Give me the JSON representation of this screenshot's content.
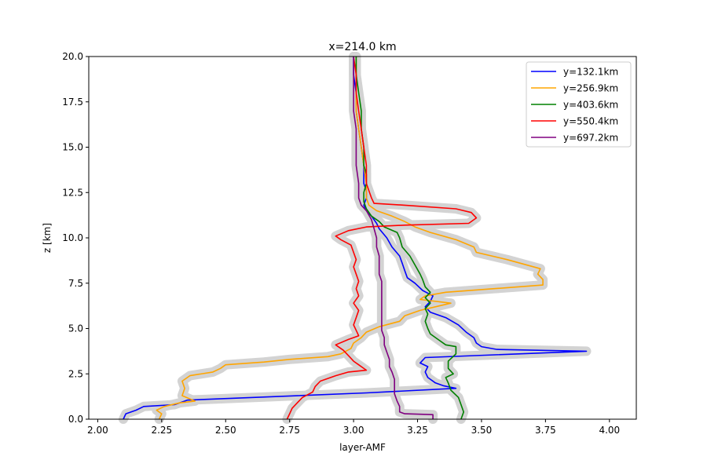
{
  "chart_data": {
    "type": "line",
    "title": "x=214.0 km",
    "xlabel": "layer-AMF",
    "ylabel": "z [km]",
    "xlim": [
      1.965,
      4.105
    ],
    "ylim": [
      0,
      20
    ],
    "xticks": [
      "2.00",
      "2.25",
      "2.50",
      "2.75",
      "3.00",
      "3.25",
      "3.50",
      "3.75",
      "4.00"
    ],
    "xtick_values": [
      2.0,
      2.25,
      2.5,
      2.75,
      3.0,
      3.25,
      3.5,
      3.75,
      4.0
    ],
    "yticks": [
      "0.0",
      "2.5",
      "5.0",
      "7.5",
      "10.0",
      "12.5",
      "15.0",
      "17.5",
      "20.0"
    ],
    "ytick_values": [
      0,
      2.5,
      5.0,
      7.5,
      10.0,
      12.5,
      15.0,
      17.5,
      20.0
    ],
    "grid": false,
    "legend_position": "top-right",
    "uncertainty_band_color": "#d3d3d3",
    "series": [
      {
        "name": "y=132.1km",
        "color": "#0000ff",
        "points": [
          [
            2.1,
            0.0
          ],
          [
            2.11,
            0.3
          ],
          [
            2.15,
            0.5
          ],
          [
            2.18,
            0.7
          ],
          [
            2.3,
            0.8
          ],
          [
            2.32,
            0.9
          ],
          [
            2.35,
            1.05
          ],
          [
            3.05,
            1.45
          ],
          [
            3.4,
            1.7
          ],
          [
            3.35,
            1.85
          ],
          [
            3.32,
            2.0
          ],
          [
            3.29,
            2.3
          ],
          [
            3.28,
            2.6
          ],
          [
            3.29,
            2.9
          ],
          [
            3.26,
            3.1
          ],
          [
            3.28,
            3.4
          ],
          [
            3.91,
            3.75
          ],
          [
            3.56,
            3.85
          ],
          [
            3.5,
            4.0
          ],
          [
            3.48,
            4.2
          ],
          [
            3.47,
            4.5
          ],
          [
            3.44,
            4.8
          ],
          [
            3.41,
            5.2
          ],
          [
            3.36,
            5.6
          ],
          [
            3.3,
            5.9
          ],
          [
            3.28,
            6.2
          ],
          [
            3.3,
            6.5
          ],
          [
            3.31,
            6.8
          ],
          [
            3.27,
            7.1
          ],
          [
            3.24,
            7.5
          ],
          [
            3.21,
            7.8
          ],
          [
            3.2,
            8.2
          ],
          [
            3.19,
            8.6
          ],
          [
            3.18,
            9.0
          ],
          [
            3.15,
            9.5
          ],
          [
            3.13,
            10.0
          ],
          [
            3.1,
            10.5
          ],
          [
            3.09,
            10.8
          ],
          [
            3.07,
            11.2
          ],
          [
            3.05,
            11.5
          ],
          [
            3.04,
            11.8
          ],
          [
            3.05,
            12.2
          ],
          [
            3.05,
            12.6
          ],
          [
            3.04,
            13.0
          ],
          [
            3.04,
            14.0
          ],
          [
            3.03,
            15.0
          ],
          [
            3.02,
            16.0
          ],
          [
            3.01,
            17.0
          ],
          [
            3.01,
            18.0
          ],
          [
            3.0,
            19.0
          ],
          [
            3.0,
            20.0
          ]
        ]
      },
      {
        "name": "y=256.9km",
        "color": "#ffa500",
        "points": [
          [
            2.24,
            0.0
          ],
          [
            2.25,
            0.3
          ],
          [
            2.23,
            0.5
          ],
          [
            2.26,
            0.7
          ],
          [
            2.32,
            0.9
          ],
          [
            2.38,
            1.0
          ],
          [
            2.33,
            1.3
          ],
          [
            2.34,
            1.7
          ],
          [
            2.33,
            2.1
          ],
          [
            2.36,
            2.4
          ],
          [
            2.45,
            2.6
          ],
          [
            2.48,
            2.8
          ],
          [
            2.5,
            3.0
          ],
          [
            2.65,
            3.15
          ],
          [
            2.75,
            3.3
          ],
          [
            2.9,
            3.45
          ],
          [
            2.95,
            3.6
          ],
          [
            2.99,
            3.9
          ],
          [
            3.0,
            4.2
          ],
          [
            3.03,
            4.5
          ],
          [
            3.05,
            4.8
          ],
          [
            3.1,
            5.1
          ],
          [
            3.18,
            5.4
          ],
          [
            3.2,
            5.7
          ],
          [
            3.26,
            6.0
          ],
          [
            3.32,
            6.2
          ],
          [
            3.38,
            6.4
          ],
          [
            3.26,
            6.6
          ],
          [
            3.28,
            6.8
          ],
          [
            3.36,
            7.0
          ],
          [
            3.55,
            7.2
          ],
          [
            3.74,
            7.4
          ],
          [
            3.74,
            7.7
          ],
          [
            3.72,
            8.0
          ],
          [
            3.73,
            8.3
          ],
          [
            3.6,
            8.8
          ],
          [
            3.48,
            9.2
          ],
          [
            3.47,
            9.5
          ],
          [
            3.4,
            9.9
          ],
          [
            3.3,
            10.3
          ],
          [
            3.24,
            10.6
          ],
          [
            3.2,
            10.9
          ],
          [
            3.15,
            11.2
          ],
          [
            3.09,
            11.5
          ],
          [
            3.06,
            11.8
          ],
          [
            3.05,
            12.2
          ],
          [
            3.05,
            12.6
          ],
          [
            3.05,
            13.0
          ],
          [
            3.04,
            14.0
          ],
          [
            3.03,
            15.0
          ],
          [
            3.02,
            16.0
          ],
          [
            3.01,
            17.0
          ],
          [
            3.01,
            18.0
          ],
          [
            3.01,
            19.0
          ],
          [
            3.01,
            20.0
          ]
        ]
      },
      {
        "name": "y=403.6km",
        "color": "#008000",
        "points": [
          [
            3.42,
            0.0
          ],
          [
            3.43,
            0.4
          ],
          [
            3.42,
            0.8
          ],
          [
            3.41,
            1.2
          ],
          [
            3.38,
            1.6
          ],
          [
            3.37,
            2.0
          ],
          [
            3.36,
            2.3
          ],
          [
            3.39,
            2.5
          ],
          [
            3.37,
            2.8
          ],
          [
            3.37,
            3.2
          ],
          [
            3.4,
            3.6
          ],
          [
            3.4,
            4.0
          ],
          [
            3.36,
            4.1
          ],
          [
            3.33,
            4.4
          ],
          [
            3.3,
            4.7
          ],
          [
            3.29,
            5.0
          ],
          [
            3.28,
            5.4
          ],
          [
            3.29,
            5.8
          ],
          [
            3.28,
            6.1
          ],
          [
            3.3,
            6.4
          ],
          [
            3.28,
            6.7
          ],
          [
            3.3,
            7.0
          ],
          [
            3.28,
            7.3
          ],
          [
            3.27,
            7.7
          ],
          [
            3.26,
            8.0
          ],
          [
            3.24,
            8.5
          ],
          [
            3.22,
            9.0
          ],
          [
            3.19,
            9.5
          ],
          [
            3.18,
            10.0
          ],
          [
            3.17,
            10.3
          ],
          [
            3.12,
            10.6
          ],
          [
            3.1,
            10.9
          ],
          [
            3.07,
            11.2
          ],
          [
            3.05,
            11.6
          ],
          [
            3.04,
            12.0
          ],
          [
            3.04,
            12.5
          ],
          [
            3.05,
            13.0
          ],
          [
            3.05,
            13.5
          ],
          [
            3.04,
            14.0
          ],
          [
            3.04,
            15.0
          ],
          [
            3.03,
            16.0
          ],
          [
            3.03,
            17.0
          ],
          [
            3.02,
            18.0
          ],
          [
            3.01,
            19.0
          ],
          [
            3.01,
            20.0
          ]
        ]
      },
      {
        "name": "y=550.4km",
        "color": "#ff0000",
        "points": [
          [
            2.74,
            0.0
          ],
          [
            2.75,
            0.3
          ],
          [
            2.76,
            0.6
          ],
          [
            2.78,
            0.9
          ],
          [
            2.8,
            1.2
          ],
          [
            2.84,
            1.5
          ],
          [
            2.85,
            1.8
          ],
          [
            2.87,
            2.1
          ],
          [
            2.93,
            2.4
          ],
          [
            2.98,
            2.6
          ],
          [
            3.05,
            2.7
          ],
          [
            3.02,
            3.0
          ],
          [
            3.0,
            3.2
          ],
          [
            2.98,
            3.5
          ],
          [
            2.96,
            3.8
          ],
          [
            2.93,
            4.1
          ],
          [
            2.98,
            4.4
          ],
          [
            3.02,
            4.6
          ],
          [
            3.01,
            4.9
          ],
          [
            3.0,
            5.2
          ],
          [
            3.01,
            5.6
          ],
          [
            3.02,
            6.0
          ],
          [
            3.0,
            6.4
          ],
          [
            3.02,
            6.8
          ],
          [
            3.01,
            7.2
          ],
          [
            3.02,
            7.6
          ],
          [
            3.01,
            8.0
          ],
          [
            3.0,
            8.4
          ],
          [
            3.01,
            8.8
          ],
          [
            3.0,
            9.2
          ],
          [
            2.99,
            9.6
          ],
          [
            2.95,
            9.9
          ],
          [
            2.93,
            10.1
          ],
          [
            2.98,
            10.4
          ],
          [
            3.05,
            10.6
          ],
          [
            3.2,
            10.7
          ],
          [
            3.45,
            10.8
          ],
          [
            3.48,
            11.1
          ],
          [
            3.46,
            11.4
          ],
          [
            3.4,
            11.6
          ],
          [
            3.2,
            11.8
          ],
          [
            3.08,
            11.9
          ],
          [
            3.07,
            12.2
          ],
          [
            3.06,
            12.6
          ],
          [
            3.05,
            13.0
          ],
          [
            3.05,
            14.0
          ],
          [
            3.04,
            15.0
          ],
          [
            3.03,
            16.0
          ],
          [
            3.02,
            17.0
          ],
          [
            3.01,
            18.0
          ],
          [
            3.01,
            19.0
          ],
          [
            3.0,
            20.0
          ]
        ]
      },
      {
        "name": "y=697.2km",
        "color": "#800080",
        "points": [
          [
            3.31,
            0.0
          ],
          [
            3.31,
            0.25
          ],
          [
            3.2,
            0.3
          ],
          [
            3.18,
            0.4
          ],
          [
            3.18,
            0.7
          ],
          [
            3.17,
            1.0
          ],
          [
            3.16,
            1.4
          ],
          [
            3.16,
            1.8
          ],
          [
            3.16,
            2.2
          ],
          [
            3.15,
            2.6
          ],
          [
            3.14,
            2.9
          ],
          [
            3.14,
            3.3
          ],
          [
            3.13,
            3.7
          ],
          [
            3.12,
            4.1
          ],
          [
            3.12,
            4.5
          ],
          [
            3.11,
            4.9
          ],
          [
            3.11,
            5.3
          ],
          [
            3.11,
            5.7
          ],
          [
            3.11,
            6.1
          ],
          [
            3.11,
            6.5
          ],
          [
            3.11,
            6.9
          ],
          [
            3.11,
            7.3
          ],
          [
            3.11,
            7.6
          ],
          [
            3.1,
            8.0
          ],
          [
            3.1,
            8.5
          ],
          [
            3.1,
            9.0
          ],
          [
            3.09,
            9.5
          ],
          [
            3.09,
            10.0
          ],
          [
            3.08,
            10.5
          ],
          [
            3.07,
            11.0
          ],
          [
            3.05,
            11.5
          ],
          [
            3.03,
            11.8
          ],
          [
            3.02,
            12.2
          ],
          [
            3.02,
            13.0
          ],
          [
            3.01,
            14.0
          ],
          [
            3.01,
            15.0
          ],
          [
            3.01,
            16.0
          ],
          [
            3.0,
            17.0
          ],
          [
            3.0,
            18.0
          ],
          [
            3.0,
            19.0
          ],
          [
            3.0,
            20.0
          ]
        ]
      }
    ]
  }
}
